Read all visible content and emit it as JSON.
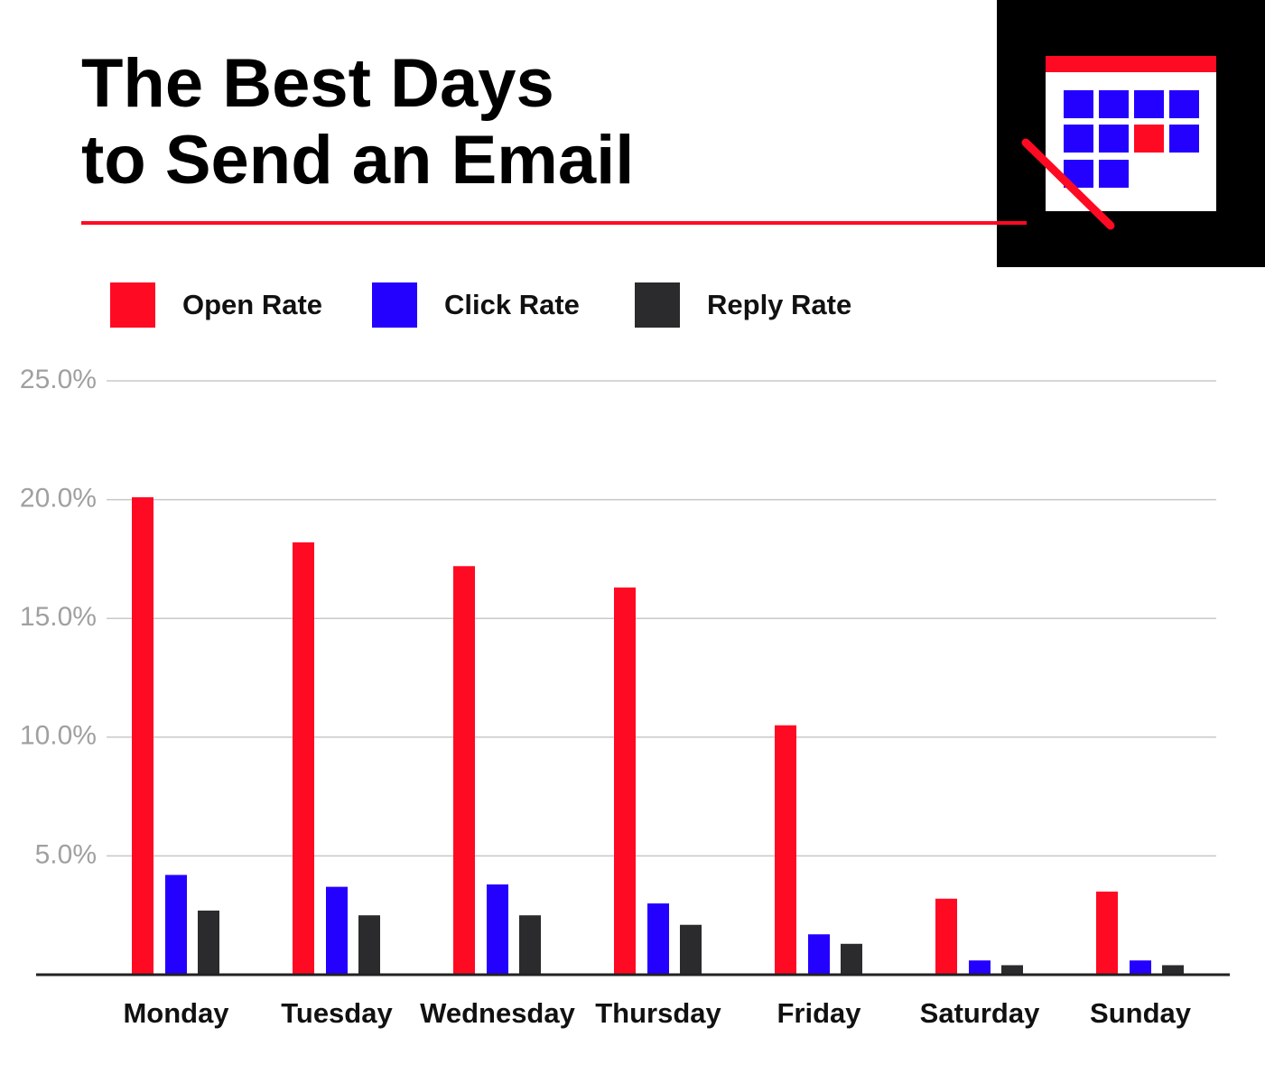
{
  "chart_data": {
    "type": "bar",
    "title": [
      "The Best Days",
      "to Send an Email"
    ],
    "categories": [
      "Monday",
      "Tuesday",
      "Wednesday",
      "Thursday",
      "Friday",
      "Saturday",
      "Sunday"
    ],
    "series": [
      {
        "name": "Open Rate",
        "color": "#ff0a23",
        "values": [
          20.1,
          18.2,
          17.2,
          16.3,
          10.5,
          3.2,
          3.5
        ]
      },
      {
        "name": "Click Rate",
        "color": "#2400ff",
        "values": [
          4.2,
          3.7,
          3.8,
          3.0,
          1.7,
          0.6,
          0.6
        ]
      },
      {
        "name": "Reply Rate",
        "color": "#2b2b2d",
        "values": [
          2.7,
          2.5,
          2.5,
          2.1,
          1.3,
          0.4,
          0.4
        ]
      }
    ],
    "ylim": [
      0,
      25
    ],
    "yticks": [
      {
        "value": 5,
        "label": "5.0%"
      },
      {
        "value": 10,
        "label": "10.0%"
      },
      {
        "value": 15,
        "label": "15.0%"
      },
      {
        "value": 20,
        "label": "20.0%"
      },
      {
        "value": 25,
        "label": "25.0%"
      }
    ],
    "grid": true
  }
}
